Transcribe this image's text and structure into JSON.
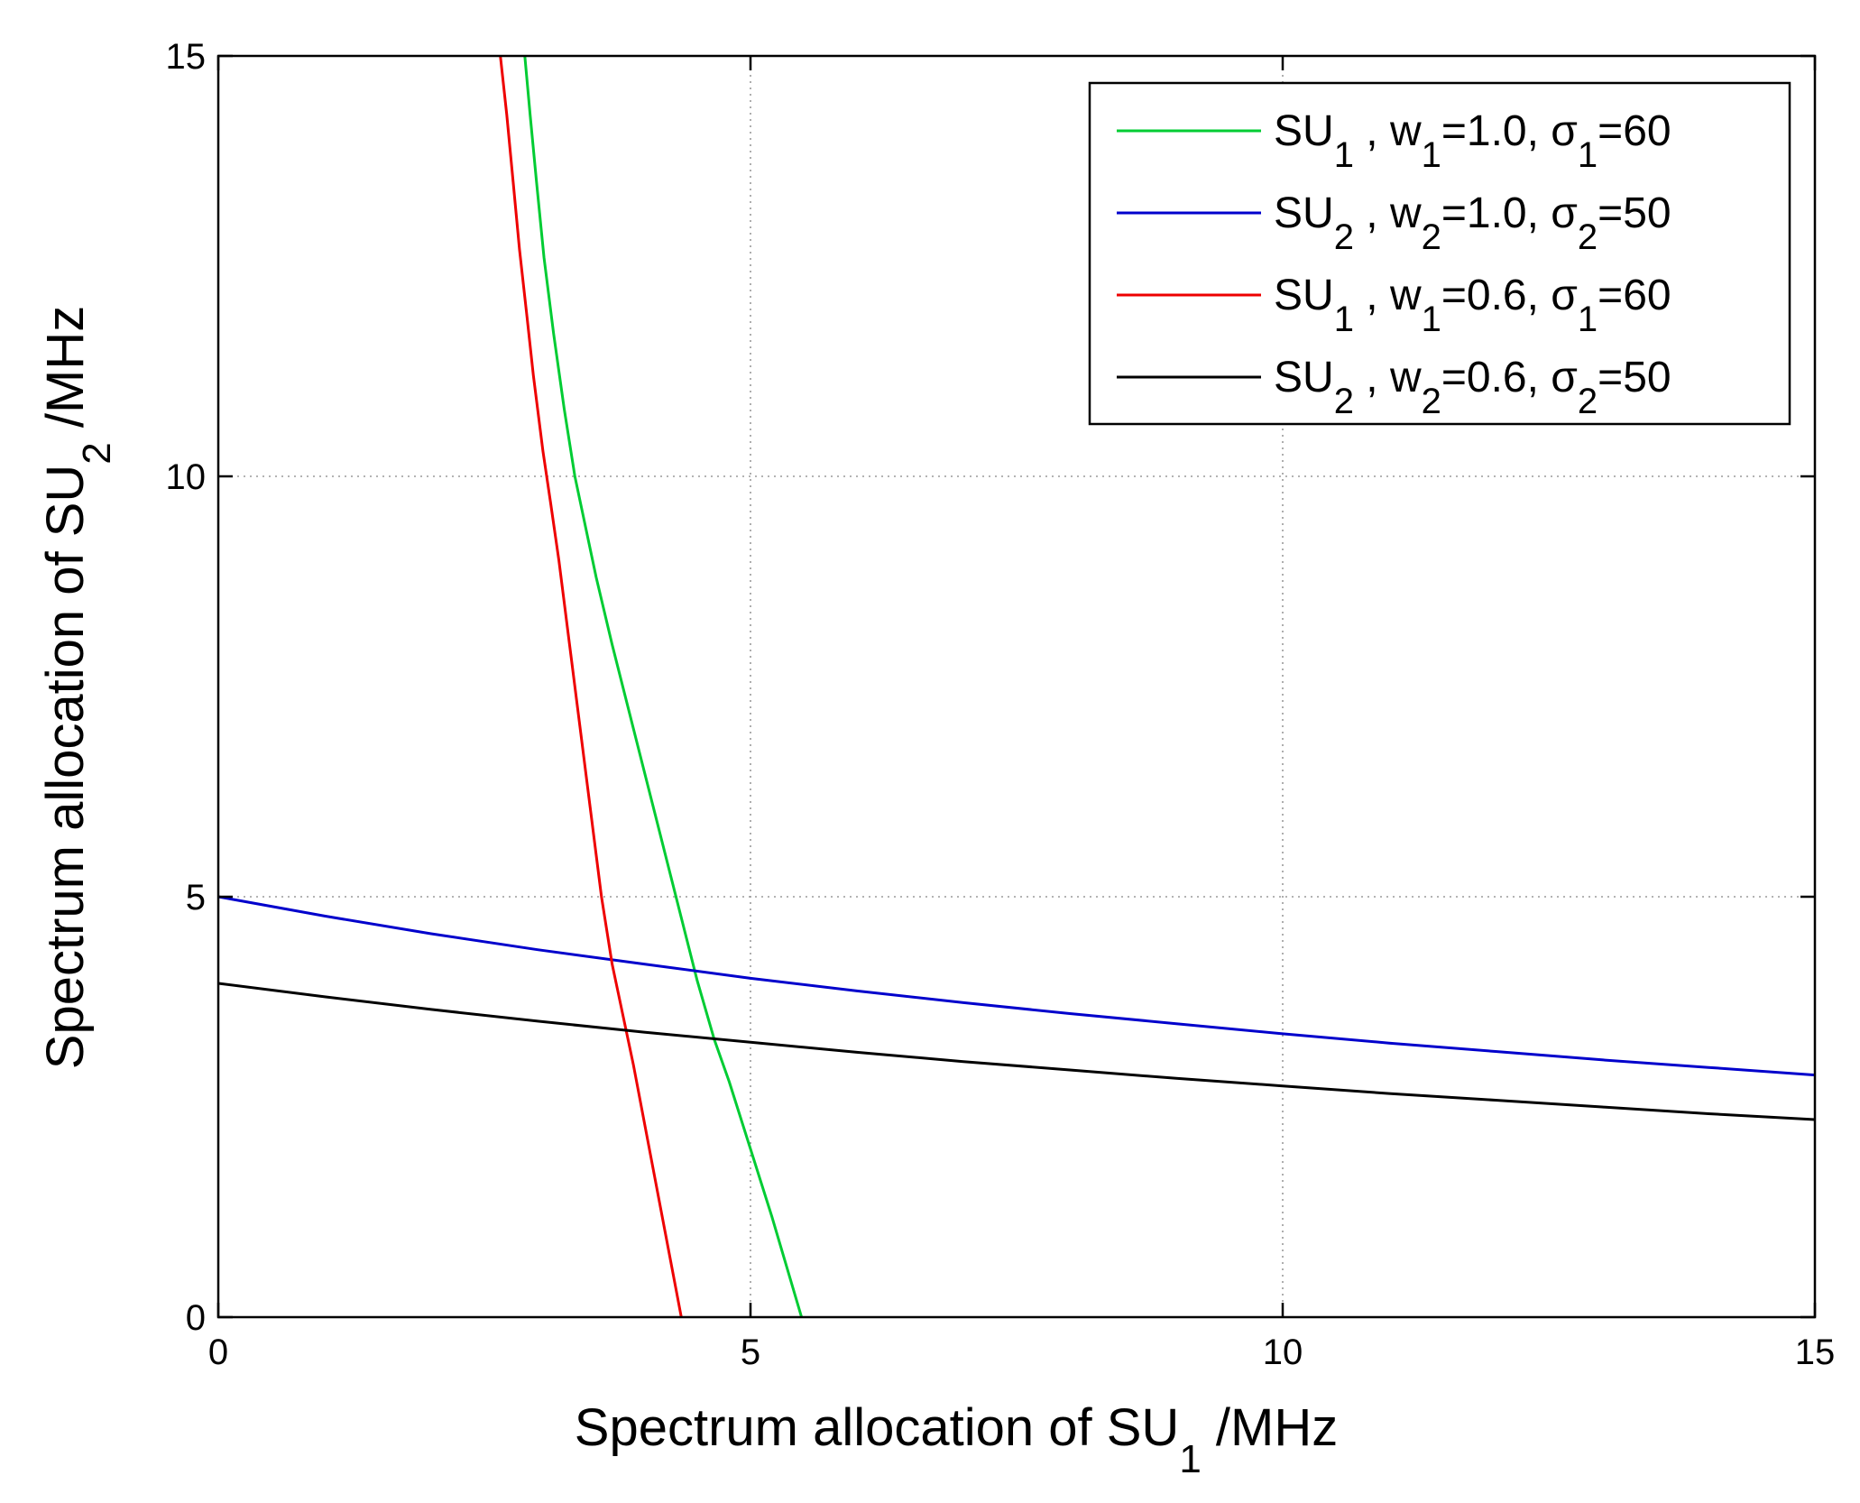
{
  "chart_data": {
    "type": "line",
    "title": "",
    "xlabel": {
      "main": "Spectrum allocation of SU",
      "sub": "1",
      "suffix": " /MHz"
    },
    "ylabel": {
      "main": "Spectrum allocation of SU",
      "sub": "2",
      "suffix": " /MHz"
    },
    "xlim": [
      0,
      15
    ],
    "ylim": [
      0,
      15
    ],
    "xticks": [
      0,
      5,
      10,
      15
    ],
    "yticks": [
      0,
      5,
      10,
      15
    ],
    "grid": true,
    "legend_position": "top-right",
    "series": [
      {
        "name": "SU1 , w1=1.0, σ1=60",
        "legend": {
          "su": "SU",
          "su_sub": "1",
          "w": "w",
          "w_sub": "1",
          "w_val": "=1.0",
          "sigma": "σ",
          "sigma_sub": "1",
          "sigma_val": "=60"
        },
        "color": "#00cc33",
        "x": [
          5.48,
          5.2,
          5.0,
          4.8,
          4.66,
          4.5,
          4.3,
          4.1,
          3.9,
          3.7,
          3.55,
          3.45,
          3.35,
          3.25,
          3.15,
          3.06,
          2.99,
          2.93,
          2.88
        ],
        "y": [
          0,
          1.2,
          2.0,
          2.8,
          3.3,
          4.0,
          5.0,
          6.0,
          7.0,
          8.0,
          8.8,
          9.4,
          10.0,
          10.8,
          11.7,
          12.6,
          13.5,
          14.3,
          15.0
        ]
      },
      {
        "name": "SU2 , w2=1.0, σ2=50",
        "legend": {
          "su": "SU",
          "su_sub": "2",
          "w": "w",
          "w_sub": "2",
          "w_val": "=1.0",
          "sigma": "σ",
          "sigma_sub": "2",
          "sigma_val": "=50"
        },
        "color": "#0000cc",
        "x": [
          0,
          1,
          2,
          3,
          4,
          5,
          6,
          7,
          8,
          9,
          10,
          11,
          12,
          13,
          14,
          15
        ],
        "y": [
          5.0,
          4.77,
          4.56,
          4.37,
          4.2,
          4.03,
          3.88,
          3.74,
          3.61,
          3.49,
          3.37,
          3.26,
          3.16,
          3.06,
          2.97,
          2.88
        ]
      },
      {
        "name": "SU1 , w1=0.6, σ1=60",
        "legend": {
          "su": "SU",
          "su_sub": "1",
          "w": "w",
          "w_sub": "1",
          "w_val": "=0.6",
          "sigma": "σ",
          "sigma_sub": "1",
          "sigma_val": "=60"
        },
        "color": "#ee0000",
        "x": [
          4.35,
          4.2,
          4.05,
          3.9,
          3.8,
          3.7,
          3.6,
          3.5,
          3.4,
          3.3,
          3.2,
          3.12,
          3.05,
          2.96,
          2.9,
          2.83,
          2.77,
          2.71,
          2.65
        ],
        "y": [
          0,
          1.0,
          2.0,
          3.0,
          3.6,
          4.2,
          5.0,
          6.0,
          7.0,
          8.0,
          9.0,
          9.7,
          10.3,
          11.2,
          11.9,
          12.7,
          13.5,
          14.3,
          15.0
        ]
      },
      {
        "name": "SU2 , w2=0.6, σ2=50",
        "legend": {
          "su": "SU",
          "su_sub": "2",
          "w": "w",
          "w_sub": "2",
          "w_val": "=0.6",
          "sigma": "σ",
          "sigma_sub": "2",
          "sigma_val": "=50"
        },
        "color": "#000000",
        "x": [
          0,
          1,
          2,
          3,
          4,
          5,
          6,
          7,
          8,
          9,
          10,
          11,
          12,
          13,
          14,
          15
        ],
        "y": [
          3.97,
          3.81,
          3.66,
          3.52,
          3.39,
          3.27,
          3.15,
          3.04,
          2.94,
          2.84,
          2.75,
          2.66,
          2.58,
          2.5,
          2.42,
          2.35
        ]
      }
    ]
  }
}
